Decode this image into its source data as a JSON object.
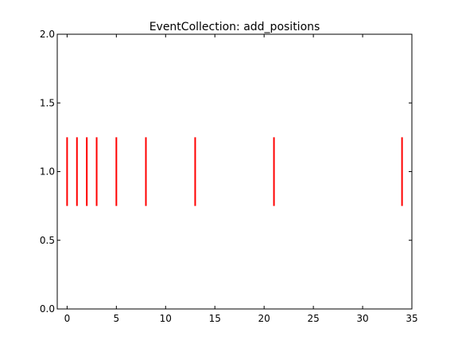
{
  "chart_data": {
    "type": "eventplot",
    "title": "EventCollection: add_positions",
    "xlabel": "",
    "ylabel": "",
    "xlim": [
      -1,
      35
    ],
    "ylim": [
      0.0,
      2.0
    ],
    "x_ticks": [
      0,
      5,
      10,
      15,
      20,
      25,
      30,
      35
    ],
    "x_tick_labels": [
      "0",
      "5",
      "10",
      "15",
      "20",
      "25",
      "30",
      "35"
    ],
    "y_ticks": [
      0.0,
      0.5,
      1.0,
      1.5,
      2.0
    ],
    "y_tick_labels": [
      "0.0",
      "0.5",
      "1.0",
      "1.5",
      "2.0"
    ],
    "grid": false,
    "series": [
      {
        "positions": [
          0,
          1,
          2,
          3,
          5,
          8,
          13,
          21,
          34
        ],
        "lineoffset": 1.0,
        "linelength": 0.5,
        "color": "#ff0000"
      }
    ]
  }
}
